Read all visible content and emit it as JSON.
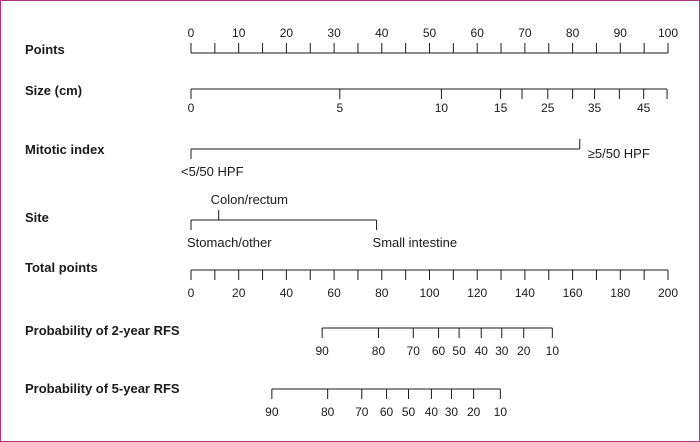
{
  "rows": [
    {
      "key": "points",
      "label": "Points",
      "type": "axis",
      "range": [
        0,
        100
      ],
      "tick_values": [
        0,
        5,
        10,
        15,
        20,
        25,
        30,
        35,
        40,
        45,
        50,
        55,
        60,
        65,
        70,
        75,
        80,
        85,
        90,
        95,
        100
      ],
      "labels": [
        {
          "v": 0,
          "t": "0"
        },
        {
          "v": 10,
          "t": "10"
        },
        {
          "v": 20,
          "t": "20"
        },
        {
          "v": 30,
          "t": "30"
        },
        {
          "v": 40,
          "t": "40"
        },
        {
          "v": 50,
          "t": "50"
        },
        {
          "v": 60,
          "t": "60"
        },
        {
          "v": 70,
          "t": "70"
        },
        {
          "v": 80,
          "t": "80"
        },
        {
          "v": 90,
          "t": "90"
        },
        {
          "v": 100,
          "t": "100"
        }
      ],
      "labels_side": "above"
    },
    {
      "key": "size",
      "label": "Size (cm)",
      "type": "axis",
      "tick_values": [
        0,
        5,
        10,
        15,
        20,
        25,
        30,
        35,
        40,
        45,
        50
      ],
      "point_values": [
        0,
        31.2,
        52.5,
        64.9,
        69.4,
        74.8,
        80.0,
        84.6,
        89.8,
        94.9,
        99.8
      ],
      "labels": [
        {
          "v": 0,
          "t": "0"
        },
        {
          "v": 5,
          "t": "5"
        },
        {
          "v": 10,
          "t": "10"
        },
        {
          "v": 15,
          "t": "15"
        },
        {
          "v": 25,
          "t": "25"
        },
        {
          "v": 35,
          "t": "35"
        },
        {
          "v": 45,
          "t": "45"
        }
      ],
      "labels_side": "below"
    },
    {
      "key": "mitotic",
      "label": "Mitotic index",
      "type": "categorical",
      "categories": [
        {
          "t": "<5/50 HPF",
          "points": 0,
          "side": "below"
        },
        {
          "t": "≥5/50 HPF",
          "points": 81.5,
          "side": "below"
        }
      ]
    },
    {
      "key": "site",
      "label": "Site",
      "type": "categorical",
      "categories": [
        {
          "t": "Stomach/other",
          "points": 0,
          "side": "below"
        },
        {
          "t": "Colon/rectum",
          "points": 5.8,
          "side": "above"
        },
        {
          "t": "Small intestine",
          "points": 38.9,
          "side": "below"
        }
      ]
    },
    {
      "key": "total",
      "label": "Total points",
      "type": "axis",
      "range": [
        0,
        200
      ],
      "tick_values": [
        0,
        10,
        20,
        30,
        40,
        50,
        60,
        70,
        80,
        90,
        100,
        110,
        120,
        130,
        140,
        150,
        160,
        170,
        180,
        190,
        200
      ],
      "labels": [
        {
          "v": 0,
          "t": "0"
        },
        {
          "v": 20,
          "t": "20"
        },
        {
          "v": 40,
          "t": "40"
        },
        {
          "v": 60,
          "t": "60"
        },
        {
          "v": 80,
          "t": "80"
        },
        {
          "v": 100,
          "t": "100"
        },
        {
          "v": 120,
          "t": "120"
        },
        {
          "v": 140,
          "t": "140"
        },
        {
          "v": 160,
          "t": "160"
        },
        {
          "v": 180,
          "t": "180"
        },
        {
          "v": 200,
          "t": "200"
        }
      ],
      "labels_side": "below"
    },
    {
      "key": "rfs2",
      "label": "Probability of 2-year RFS",
      "type": "axis",
      "labels": [
        {
          "t": "90",
          "total": 55
        },
        {
          "t": "80",
          "total": 78.6
        },
        {
          "t": "70",
          "total": 93.2
        },
        {
          "t": "60",
          "total": 103.8
        },
        {
          "t": "50",
          "total": 112.4
        },
        {
          "t": "40",
          "total": 121.7
        },
        {
          "t": "30",
          "total": 130.3
        },
        {
          "t": "20",
          "total": 139.5
        },
        {
          "t": "10",
          "total": 151.5
        }
      ],
      "labels_side": "below"
    },
    {
      "key": "rfs5",
      "label": "Probability of 5-year RFS",
      "type": "axis",
      "labels": [
        {
          "t": "90",
          "total": 33.9
        },
        {
          "t": "80",
          "total": 57.3
        },
        {
          "t": "70",
          "total": 71.6
        },
        {
          "t": "60",
          "total": 82.0
        },
        {
          "t": "50",
          "total": 91.2
        },
        {
          "t": "40",
          "total": 100.8
        },
        {
          "t": "30",
          "total": 109.2
        },
        {
          "t": "20",
          "total": 118.5
        },
        {
          "t": "10",
          "total": 129.7
        }
      ],
      "labels_side": "below"
    }
  ]
}
